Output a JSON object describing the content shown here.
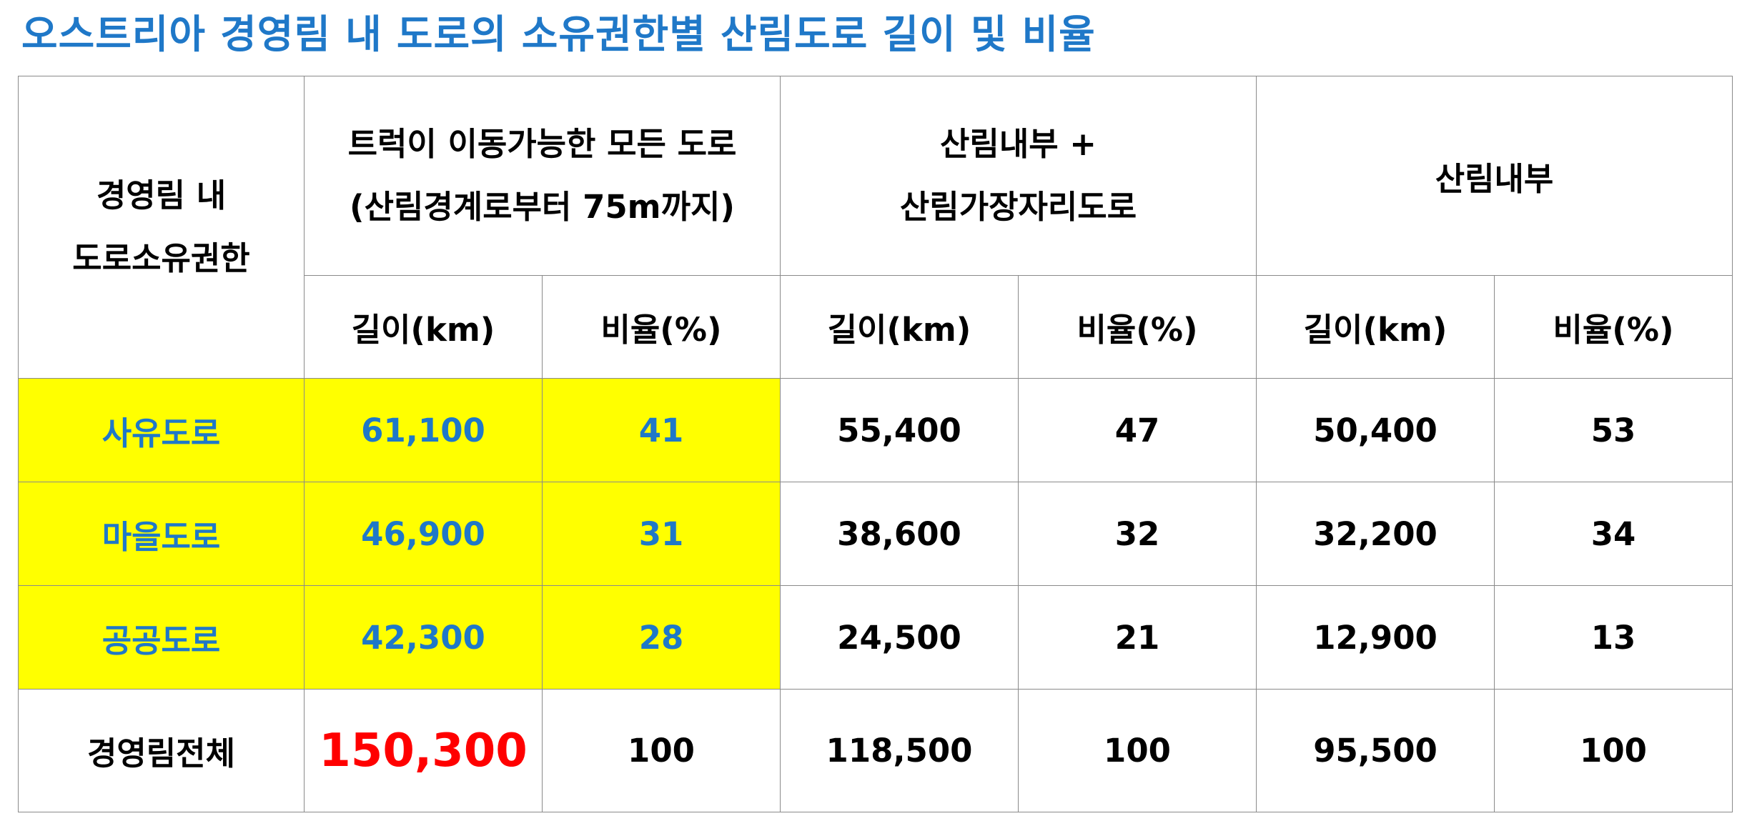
{
  "title": "오스트리아 경영림 내 도로의 소유권한별 산림도로 길이 및 비율",
  "table": {
    "owner_header": {
      "line1": "경영림 내",
      "line2": "도로소유권한"
    },
    "groups": [
      {
        "line1": "트럭이 이동가능한 모든 도로",
        "line2": "(산림경계로부터 75m까지)"
      },
      {
        "line1": "산림내부 +",
        "line2": "산림가장자리도로"
      },
      {
        "line1": "산림내부",
        "line2": ""
      }
    ],
    "subheaders": {
      "length": "길이(km)",
      "ratio": "비율(%)"
    },
    "rows": [
      {
        "name": "사유도로",
        "cells": [
          "61,100",
          "41",
          "55,400",
          "47",
          "50,400",
          "53"
        ]
      },
      {
        "name": "마을도로",
        "cells": [
          "46,900",
          "31",
          "38,600",
          "32",
          "32,200",
          "34"
        ]
      },
      {
        "name": "공공도로",
        "cells": [
          "42,300",
          "28",
          "24,500",
          "21",
          "12,900",
          "13"
        ]
      }
    ],
    "total": {
      "name": "경영림전체",
      "cells": [
        "150,300",
        "100",
        "118,500",
        "100",
        "95,500",
        "100"
      ]
    }
  },
  "colors": {
    "title": "#1f78c8",
    "highlight_bg": "#ffff00",
    "highlight_text": "#1f78c8",
    "total_emphasis": "#ff0000",
    "border": "#8a8a8a"
  }
}
